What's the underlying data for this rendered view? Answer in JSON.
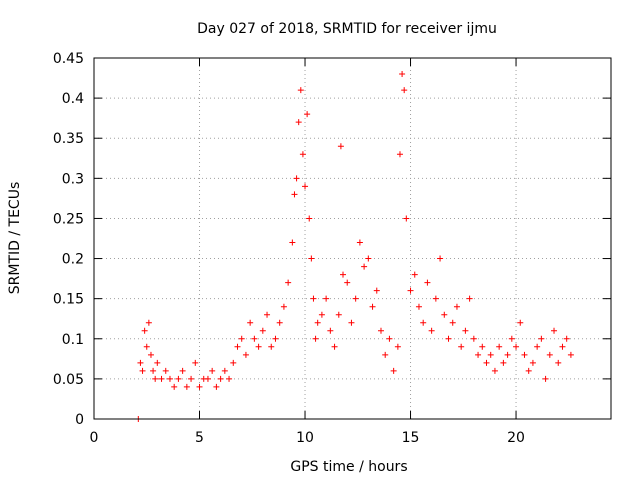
{
  "chart_data": {
    "type": "scatter",
    "title": "Day 027 of 2018, SRMTID for receiver ijmu",
    "xlabel": "GPS time / hours",
    "ylabel": "SRMTID / TECUs",
    "xlim": [
      0,
      24.5
    ],
    "ylim": [
      0,
      0.45
    ],
    "x_ticks": [
      0,
      5,
      10,
      15,
      20
    ],
    "x_tick_labels": [
      "0",
      "5",
      "10",
      "15",
      "20"
    ],
    "y_ticks": [
      0,
      0.05,
      0.1,
      0.15,
      0.2,
      0.25,
      0.3,
      0.35,
      0.4,
      0.45
    ],
    "y_tick_labels": [
      "0",
      "0.05",
      "0.1",
      "0.15",
      "0.2",
      "0.25",
      "0.3",
      "0.35",
      "0.4",
      "0.45"
    ],
    "grid": true,
    "marker": "plus",
    "color": "#ff0000",
    "series": [
      {
        "name": "SRMTID",
        "x": [
          2.1,
          2.2,
          2.3,
          2.4,
          2.5,
          2.6,
          2.7,
          2.8,
          2.9,
          3.0,
          3.2,
          3.4,
          3.6,
          3.8,
          4.0,
          4.2,
          4.4,
          4.6,
          4.8,
          5.0,
          5.2,
          5.4,
          5.6,
          5.8,
          6.0,
          6.2,
          6.4,
          6.6,
          6.8,
          7.0,
          7.2,
          7.4,
          7.6,
          7.8,
          8.0,
          8.2,
          8.4,
          8.6,
          8.8,
          9.0,
          9.2,
          9.4,
          9.5,
          9.6,
          9.7,
          9.8,
          9.9,
          10.0,
          10.1,
          10.2,
          10.3,
          10.4,
          10.5,
          10.6,
          10.8,
          11.0,
          11.2,
          11.4,
          11.6,
          11.7,
          11.8,
          12.0,
          12.2,
          12.4,
          12.6,
          12.8,
          13.0,
          13.2,
          13.4,
          13.6,
          13.8,
          14.0,
          14.2,
          14.4,
          14.5,
          14.6,
          14.7,
          14.8,
          15.0,
          15.2,
          15.4,
          15.6,
          15.8,
          16.0,
          16.2,
          16.4,
          16.6,
          16.8,
          17.0,
          17.2,
          17.4,
          17.6,
          17.8,
          18.0,
          18.2,
          18.4,
          18.6,
          18.8,
          19.0,
          19.2,
          19.4,
          19.6,
          19.8,
          20.0,
          20.2,
          20.4,
          20.6,
          20.8,
          21.0,
          21.2,
          21.4,
          21.6,
          21.8,
          22.0,
          22.2,
          22.4,
          22.6
        ],
        "y": [
          0.0,
          0.07,
          0.06,
          0.11,
          0.09,
          0.12,
          0.08,
          0.06,
          0.05,
          0.07,
          0.05,
          0.06,
          0.05,
          0.04,
          0.05,
          0.06,
          0.04,
          0.05,
          0.07,
          0.04,
          0.05,
          0.05,
          0.06,
          0.04,
          0.05,
          0.06,
          0.05,
          0.07,
          0.09,
          0.1,
          0.08,
          0.12,
          0.1,
          0.09,
          0.11,
          0.13,
          0.09,
          0.1,
          0.12,
          0.14,
          0.17,
          0.22,
          0.28,
          0.3,
          0.37,
          0.41,
          0.33,
          0.29,
          0.38,
          0.25,
          0.2,
          0.15,
          0.1,
          0.12,
          0.13,
          0.15,
          0.11,
          0.09,
          0.13,
          0.34,
          0.18,
          0.17,
          0.12,
          0.15,
          0.22,
          0.19,
          0.2,
          0.14,
          0.16,
          0.11,
          0.08,
          0.1,
          0.06,
          0.09,
          0.33,
          0.43,
          0.41,
          0.25,
          0.16,
          0.18,
          0.14,
          0.12,
          0.17,
          0.11,
          0.15,
          0.2,
          0.13,
          0.1,
          0.12,
          0.14,
          0.09,
          0.11,
          0.15,
          0.1,
          0.08,
          0.09,
          0.07,
          0.08,
          0.06,
          0.09,
          0.07,
          0.08,
          0.1,
          0.09,
          0.12,
          0.08,
          0.06,
          0.07,
          0.09,
          0.1,
          0.05,
          0.08,
          0.11,
          0.07,
          0.09,
          0.1,
          0.08
        ]
      }
    ]
  }
}
